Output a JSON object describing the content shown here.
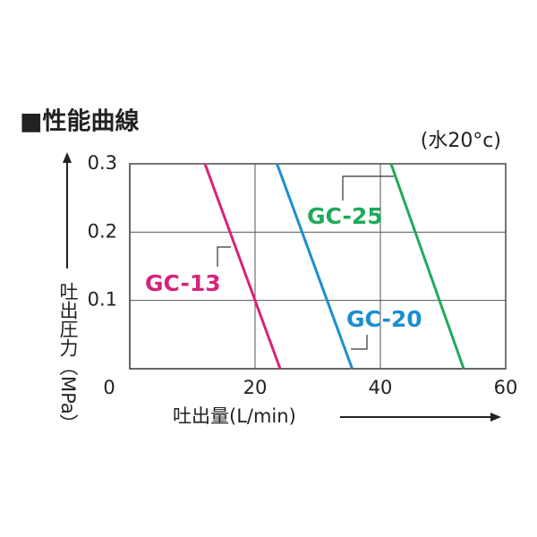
{
  "chart_data": {
    "type": "line",
    "title": "■性能曲線",
    "annotation": "(水20°c)",
    "ylabel": "吐出圧力（MPa）",
    "xlabel": "吐出量(L/min)",
    "origin_label": "0",
    "xlim": [
      0,
      60
    ],
    "xticks": [
      20,
      40,
      60
    ],
    "ylim": [
      0,
      0.3
    ],
    "yticks": [
      0.1,
      0.2,
      0.3
    ],
    "grid": true,
    "series": [
      {
        "name": "GC-13",
        "color": "#d6247a",
        "x": [
          12,
          24
        ],
        "values": [
          0.3,
          0
        ]
      },
      {
        "name": "GC-20",
        "color": "#1a8fd0",
        "x": [
          23.5,
          35.5
        ],
        "values": [
          0.3,
          0
        ]
      },
      {
        "name": "GC-25",
        "color": "#1faa5a",
        "x": [
          41.7,
          53.3
        ],
        "values": [
          0.3,
          0
        ]
      }
    ]
  }
}
